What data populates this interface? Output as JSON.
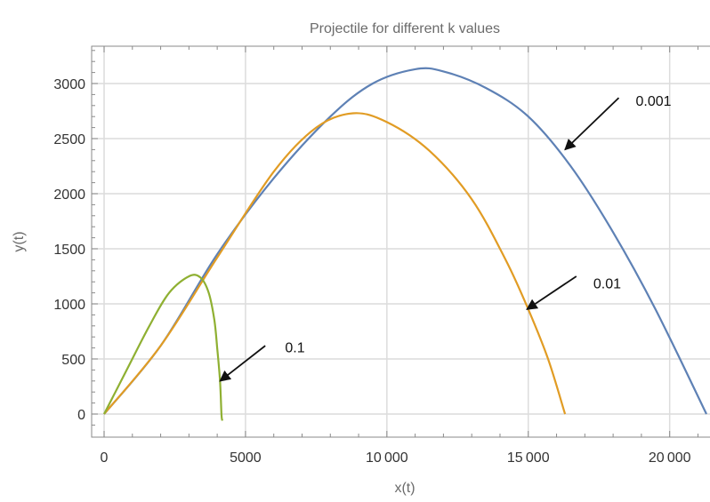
{
  "chart_data": {
    "type": "line",
    "title": "Projectile for different k values",
    "xlabel": "x(t)",
    "ylabel": "y(t)",
    "xlim": [
      -1000,
      21800
    ],
    "ylim": [
      -200,
      3400
    ],
    "x_ticks": [
      0,
      5000,
      10000,
      15000,
      20000
    ],
    "x_tick_labels": [
      "0",
      "5000",
      "10 000",
      "15 000",
      "20 000"
    ],
    "y_ticks": [
      0,
      500,
      1000,
      1500,
      2000,
      2500,
      3000
    ],
    "y_tick_labels": [
      "0",
      "500",
      "1000",
      "1500",
      "2000",
      "2500",
      "3000"
    ],
    "grid": true,
    "series": [
      {
        "name": "0.001",
        "color": "#5e81b5",
        "points": [
          [
            0,
            0
          ],
          [
            2000,
            620
          ],
          [
            4000,
            1450
          ],
          [
            6000,
            2140
          ],
          [
            8000,
            2700
          ],
          [
            9500,
            3000
          ],
          [
            11000,
            3130
          ],
          [
            12000,
            3110
          ],
          [
            13500,
            2960
          ],
          [
            15000,
            2700
          ],
          [
            16500,
            2250
          ],
          [
            18000,
            1650
          ],
          [
            19500,
            950
          ],
          [
            21300,
            0
          ]
        ]
      },
      {
        "name": "0.01",
        "color": "#e19c24",
        "points": [
          [
            0,
            0
          ],
          [
            2000,
            620
          ],
          [
            4000,
            1420
          ],
          [
            6000,
            2200
          ],
          [
            7500,
            2600
          ],
          [
            8800,
            2730
          ],
          [
            10000,
            2650
          ],
          [
            11500,
            2390
          ],
          [
            13000,
            1950
          ],
          [
            14200,
            1400
          ],
          [
            15000,
            950
          ],
          [
            15700,
            500
          ],
          [
            16300,
            0
          ]
        ]
      },
      {
        "name": "0.1",
        "color": "#8fb032",
        "points": [
          [
            0,
            0
          ],
          [
            800,
            400
          ],
          [
            1600,
            800
          ],
          [
            2300,
            1100
          ],
          [
            3000,
            1250
          ],
          [
            3400,
            1240
          ],
          [
            3700,
            1100
          ],
          [
            3900,
            850
          ],
          [
            4000,
            600
          ],
          [
            4100,
            300
          ],
          [
            4150,
            0
          ],
          [
            4180,
            -60
          ]
        ]
      }
    ],
    "annotations": [
      {
        "text": "0.001",
        "point": [
          16300,
          2400
        ],
        "arrow_from": [
          18200,
          2870
        ],
        "label_at": [
          18800,
          2800
        ]
      },
      {
        "text": "0.01",
        "point": [
          14950,
          950
        ],
        "arrow_from": [
          16700,
          1250
        ],
        "label_at": [
          17300,
          1140
        ]
      },
      {
        "text": "0.1",
        "point": [
          4100,
          300
        ],
        "arrow_from": [
          5700,
          620
        ],
        "label_at": [
          6400,
          560
        ]
      }
    ]
  }
}
